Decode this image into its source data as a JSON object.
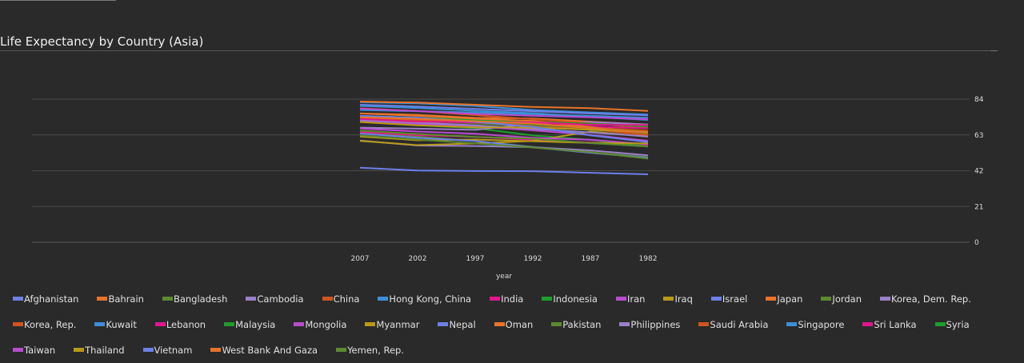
{
  "chart_data": {
    "type": "line",
    "title": "Life Expectancy by Country (Asia)",
    "xlabel": "year",
    "ylabel": "",
    "x": [
      "2007",
      "2002",
      "1997",
      "1992",
      "1987",
      "1982"
    ],
    "ylim": [
      0,
      84
    ],
    "yticks": [
      "84",
      "63",
      "42",
      "21",
      "0"
    ],
    "grid": true,
    "legend_position": "bottom",
    "series": [
      {
        "name": "Afghanistan",
        "color": "#6d7fe8",
        "values": [
          43.8,
          42.1,
          41.8,
          41.7,
          40.8,
          39.9
        ]
      },
      {
        "name": "Bahrain",
        "color": "#e8732a",
        "values": [
          75.6,
          74.8,
          73.0,
          72.6,
          70.8,
          69.1
        ]
      },
      {
        "name": "Bangladesh",
        "color": "#5d8a2f",
        "values": [
          64.1,
          62.0,
          59.4,
          56.0,
          52.8,
          50.0
        ]
      },
      {
        "name": "Cambodia",
        "color": "#9a80c8",
        "values": [
          59.7,
          56.8,
          56.5,
          55.8,
          53.9,
          51.0
        ]
      },
      {
        "name": "China",
        "color": "#d0541e",
        "values": [
          73.0,
          72.0,
          70.4,
          68.7,
          67.3,
          65.5
        ]
      },
      {
        "name": "Hong Kong, China",
        "color": "#3d8fd6",
        "values": [
          82.2,
          81.5,
          80.0,
          77.6,
          76.2,
          75.0
        ]
      },
      {
        "name": "India",
        "color": "#e0178c",
        "values": [
          64.7,
          62.9,
          61.8,
          60.2,
          58.6,
          56.6
        ]
      },
      {
        "name": "Indonesia",
        "color": "#1f9d2a",
        "values": [
          70.7,
          68.6,
          67.0,
          62.7,
          60.1,
          56.2
        ]
      },
      {
        "name": "Iran",
        "color": "#b84ccf",
        "values": [
          71.0,
          69.5,
          68.0,
          65.7,
          63.0,
          59.6
        ]
      },
      {
        "name": "Iraq",
        "color": "#b89a1a",
        "values": [
          59.5,
          57.0,
          58.0,
          59.5,
          65.0,
          62.0
        ]
      },
      {
        "name": "Israel",
        "color": "#6d7fe8",
        "values": [
          80.7,
          79.7,
          78.3,
          76.9,
          75.6,
          74.5
        ]
      },
      {
        "name": "Japan",
        "color": "#e8732a",
        "values": [
          82.6,
          82.0,
          80.7,
          79.4,
          78.7,
          77.1
        ]
      },
      {
        "name": "Jordan",
        "color": "#5d8a2f",
        "values": [
          72.5,
          71.3,
          69.8,
          68.0,
          66.0,
          63.7
        ]
      },
      {
        "name": "Korea, Dem. Rep.",
        "color": "#9a80c8",
        "values": [
          67.3,
          66.7,
          66.0,
          69.5,
          70.6,
          69.1
        ]
      },
      {
        "name": "Korea, Rep.",
        "color": "#d0541e",
        "values": [
          78.6,
          77.0,
          74.6,
          72.2,
          69.8,
          67.1
        ]
      },
      {
        "name": "Kuwait",
        "color": "#3d8fd6",
        "values": [
          77.6,
          76.9,
          76.2,
          75.2,
          74.2,
          73.0
        ]
      },
      {
        "name": "Lebanon",
        "color": "#e0178c",
        "values": [
          72.0,
          71.0,
          70.3,
          69.3,
          67.9,
          66.9
        ]
      },
      {
        "name": "Malaysia",
        "color": "#1f9d2a",
        "values": [
          74.2,
          73.0,
          71.9,
          70.7,
          69.5,
          68.0
        ]
      },
      {
        "name": "Mongolia",
        "color": "#b84ccf",
        "values": [
          66.8,
          65.0,
          63.7,
          61.3,
          60.2,
          57.5
        ]
      },
      {
        "name": "Myanmar",
        "color": "#b89a1a",
        "values": [
          62.1,
          59.9,
          60.3,
          59.3,
          58.3,
          58.0
        ]
      },
      {
        "name": "Nepal",
        "color": "#6d7fe8",
        "values": [
          63.8,
          61.3,
          59.4,
          55.7,
          52.5,
          49.6
        ]
      },
      {
        "name": "Oman",
        "color": "#e8732a",
        "values": [
          75.6,
          74.2,
          72.5,
          71.2,
          67.7,
          62.7
        ]
      },
      {
        "name": "Pakistan",
        "color": "#5d8a2f",
        "values": [
          65.5,
          63.6,
          61.8,
          60.8,
          58.2,
          56.2
        ]
      },
      {
        "name": "Philippines",
        "color": "#9a80c8",
        "values": [
          71.7,
          70.3,
          68.6,
          66.5,
          64.5,
          62.1
        ]
      },
      {
        "name": "Saudi Arabia",
        "color": "#d0541e",
        "values": [
          72.8,
          71.6,
          70.5,
          68.8,
          66.3,
          63.0
        ]
      },
      {
        "name": "Singapore",
        "color": "#3d8fd6",
        "values": [
          80.0,
          78.8,
          77.2,
          75.8,
          73.6,
          71.8
        ]
      },
      {
        "name": "Sri Lanka",
        "color": "#e0178c",
        "values": [
          72.4,
          70.8,
          70.5,
          70.4,
          69.0,
          68.8
        ]
      },
      {
        "name": "Syria",
        "color": "#1f9d2a",
        "values": [
          74.1,
          73.1,
          71.5,
          69.2,
          66.97,
          64.6
        ]
      },
      {
        "name": "Taiwan",
        "color": "#b84ccf",
        "values": [
          78.4,
          77.0,
          75.3,
          74.3,
          73.4,
          72.2
        ]
      },
      {
        "name": "Thailand",
        "color": "#b89a1a",
        "values": [
          70.6,
          68.6,
          67.5,
          67.3,
          66.1,
          64.6
        ]
      },
      {
        "name": "Vietnam",
        "color": "#6d7fe8",
        "values": [
          74.2,
          73.0,
          70.7,
          67.7,
          62.8,
          58.8
        ]
      },
      {
        "name": "West Bank And Gaza",
        "color": "#e8732a",
        "values": [
          73.4,
          72.4,
          71.1,
          69.7,
          67.0,
          64.4
        ]
      },
      {
        "name": "Yemen, Rep.",
        "color": "#5d8a2f",
        "values": [
          62.7,
          60.3,
          58.0,
          55.6,
          52.9,
          49.1
        ]
      }
    ]
  }
}
